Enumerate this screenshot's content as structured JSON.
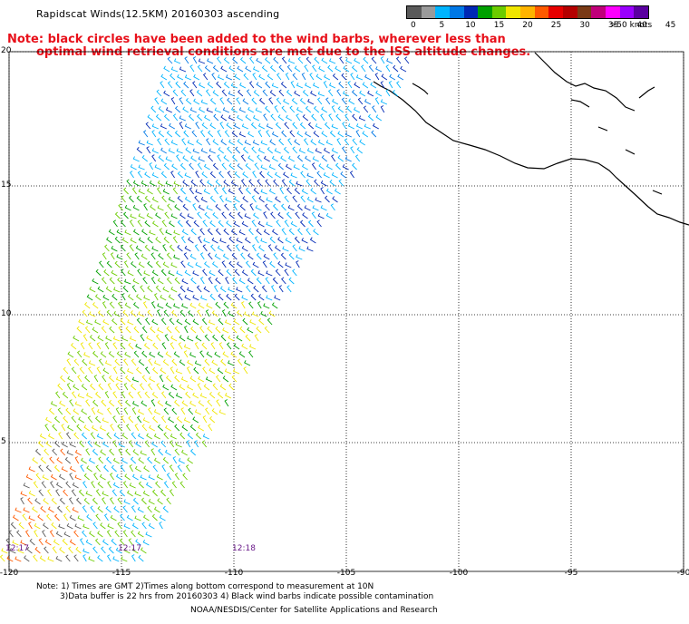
{
  "title": "Rapidscat Winds(12.5KM) 20160303 ascending",
  "note": {
    "line1": "Note: black circles have been added to the wind barbs, wherever less than",
    "line2": "optimal wind retrieval conditions are met due to the ISS altitude changes."
  },
  "legend": {
    "unit_label": ">50 knots",
    "ticks": [
      "0",
      "5",
      "10",
      "15",
      "20",
      "25",
      "30",
      "35",
      "40",
      "45"
    ],
    "colors": [
      "#5a5a5a",
      "#9a9a9a",
      "#00b4ff",
      "#0078e6",
      "#0028b4",
      "#00a000",
      "#6ccc00",
      "#f0e600",
      "#ffb400",
      "#ff5a00",
      "#e60000",
      "#b40000",
      "#7a3a16",
      "#c0007a",
      "#ff00ff",
      "#9a00ff",
      "#5a00a0"
    ]
  },
  "axes": {
    "lon_labels": [
      "-120",
      "-115",
      "-110",
      "-105",
      "-100",
      "-95",
      "-90"
    ],
    "lat_labels": [
      "20",
      "15",
      "10",
      "5"
    ]
  },
  "times": [
    "12:17",
    "12:17",
    "12:18"
  ],
  "footer": {
    "line1": "Note: 1) Times are GMT 2)Times along bottom correspond to measurement at 10N",
    "line2": "3)Data buffer is 22 hrs from 20160303 4) Black wind barbs indicate possible contamination",
    "line3": "NOAA/NESDIS/Center for Satellite Applications and Research"
  }
}
